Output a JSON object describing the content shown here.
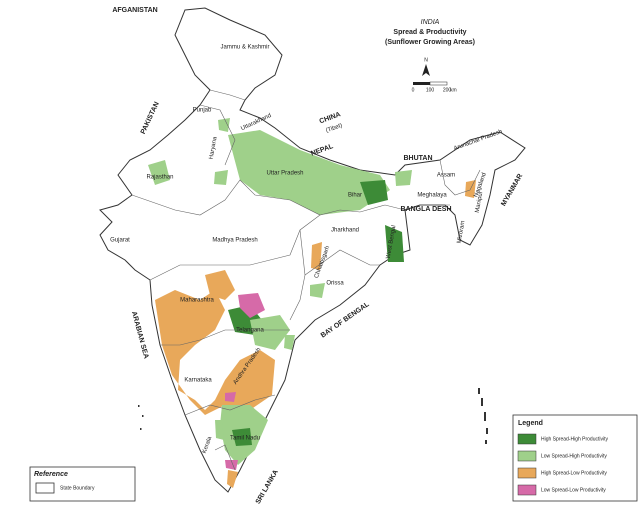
{
  "map": {
    "title": {
      "country": "INDIA",
      "line1": "Spread & Productivity",
      "line2": "(Sunflower Growing Areas)"
    },
    "north": "N",
    "scale": [
      "0",
      "100",
      "200",
      "km"
    ],
    "labels": [
      "AFGANISTAN",
      "Jammu & Kashmir",
      "PAKISTAN",
      "Punjab",
      "Haryana",
      "Uttarakhand",
      "CHINA",
      "(Tibet)",
      "NEPAL",
      "Rajasthan",
      "Uttar Pradesh",
      "BHUTAN",
      "Arunachal Pradesh",
      "Assam",
      "Meghalaya",
      "Nagaland",
      "Manipur",
      "Mizoram",
      "MYANMAR",
      "BANGLA DESH",
      "Bihar",
      "Jharkhand",
      "West Bengal",
      "Gujarat",
      "Madhya Pradesh",
      "Chhattisgarh",
      "Orissa",
      "Maharashtra",
      "Telangana",
      "Andhra Pradesh",
      "Karnataka",
      "Kerala",
      "Tamil Nadu",
      "ARABIAN SEA",
      "BAY OF BENGAL",
      "SRI LANKA"
    ],
    "legend": {
      "title": "Legend",
      "items": [
        {
          "label": "High Spread-High Productivity",
          "color": "#3d8b37"
        },
        {
          "label": "Low Spread-High Productivity",
          "color": "#9fd08a"
        },
        {
          "label": "High Spread-Low Productivity",
          "color": "#e8a85a"
        },
        {
          "label": "Low Spread-Low Productivity",
          "color": "#d66aa8"
        }
      ]
    },
    "reference": {
      "title": "Reference",
      "item": "State Boundary"
    }
  }
}
